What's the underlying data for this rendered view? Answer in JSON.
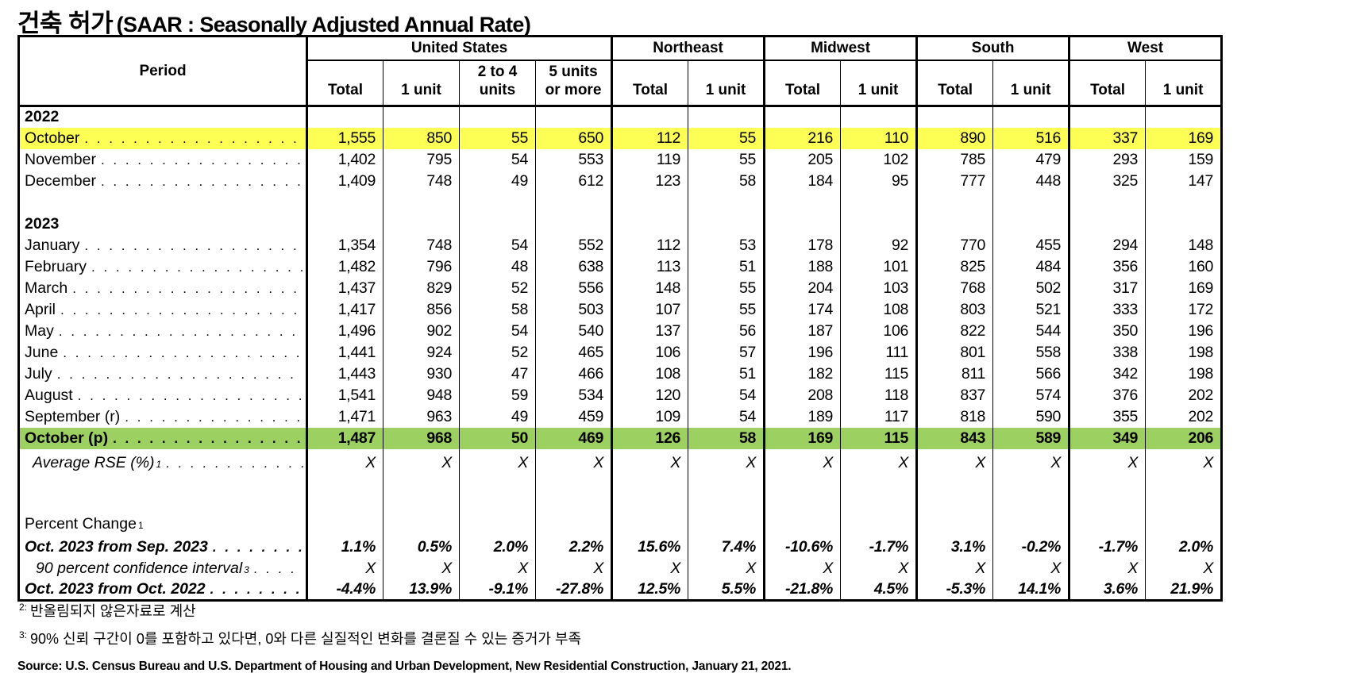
{
  "title": {
    "ko": "건축 허가",
    "en": "(SAAR : Seasonally Adjusted Annual Rate)"
  },
  "colors": {
    "highlight_yellow": "#FEFF54",
    "highlight_green": "#9CD162"
  },
  "table": {
    "header": {
      "period_label": "Period",
      "groups": [
        {
          "label": "United States",
          "cols": [
            "Total",
            "1 unit",
            "2 to 4\nunits",
            "5 units\nor more"
          ]
        },
        {
          "label": "Northeast",
          "cols": [
            "Total",
            "1 unit"
          ]
        },
        {
          "label": "Midwest",
          "cols": [
            "Total",
            "1 unit"
          ]
        },
        {
          "label": "South",
          "cols": [
            "Total",
            "1 unit"
          ]
        },
        {
          "label": "West",
          "cols": [
            "Total",
            "1 unit"
          ]
        }
      ]
    },
    "rows": [
      {
        "type": "section",
        "label": "2022"
      },
      {
        "type": "data",
        "label": "October",
        "highlight": "yellow",
        "values": [
          "1,555",
          "850",
          "55",
          "650",
          "112",
          "55",
          "216",
          "110",
          "890",
          "516",
          "337",
          "169"
        ]
      },
      {
        "type": "data",
        "label": "November",
        "values": [
          "1,402",
          "795",
          "54",
          "553",
          "119",
          "55",
          "205",
          "102",
          "785",
          "479",
          "293",
          "159"
        ]
      },
      {
        "type": "data",
        "label": "December",
        "values": [
          "1,409",
          "748",
          "49",
          "612",
          "123",
          "58",
          "184",
          "95",
          "777",
          "448",
          "325",
          "147"
        ]
      },
      {
        "type": "blank"
      },
      {
        "type": "section",
        "label": "2023"
      },
      {
        "type": "data",
        "label": "January",
        "values": [
          "1,354",
          "748",
          "54",
          "552",
          "112",
          "53",
          "178",
          "92",
          "770",
          "455",
          "294",
          "148"
        ]
      },
      {
        "type": "data",
        "label": "February",
        "values": [
          "1,482",
          "796",
          "48",
          "638",
          "113",
          "51",
          "188",
          "101",
          "825",
          "484",
          "356",
          "160"
        ]
      },
      {
        "type": "data",
        "label": "March",
        "values": [
          "1,437",
          "829",
          "52",
          "556",
          "148",
          "55",
          "204",
          "103",
          "768",
          "502",
          "317",
          "169"
        ]
      },
      {
        "type": "data",
        "label": "April",
        "values": [
          "1,417",
          "856",
          "58",
          "503",
          "107",
          "55",
          "174",
          "108",
          "803",
          "521",
          "333",
          "172"
        ]
      },
      {
        "type": "data",
        "label": "May",
        "values": [
          "1,496",
          "902",
          "54",
          "540",
          "137",
          "56",
          "187",
          "106",
          "822",
          "544",
          "350",
          "196"
        ]
      },
      {
        "type": "data",
        "label": "June",
        "values": [
          "1,441",
          "924",
          "52",
          "465",
          "106",
          "57",
          "196",
          "111",
          "801",
          "558",
          "338",
          "198"
        ]
      },
      {
        "type": "data",
        "label": "July",
        "values": [
          "1,443",
          "930",
          "47",
          "466",
          "108",
          "51",
          "182",
          "115",
          "811",
          "566",
          "342",
          "198"
        ]
      },
      {
        "type": "data",
        "label": "August",
        "values": [
          "1,541",
          "948",
          "59",
          "534",
          "120",
          "54",
          "208",
          "118",
          "837",
          "574",
          "376",
          "202"
        ]
      },
      {
        "type": "data",
        "label": "September (r)",
        "values": [
          "1,471",
          "963",
          "49",
          "459",
          "109",
          "54",
          "189",
          "117",
          "818",
          "590",
          "355",
          "202"
        ]
      },
      {
        "type": "data",
        "label": "October (p)",
        "highlight": "green",
        "values": [
          "1,487",
          "968",
          "50",
          "469",
          "126",
          "58",
          "169",
          "115",
          "843",
          "589",
          "349",
          "206"
        ]
      },
      {
        "type": "rse",
        "label": "Average RSE (%)",
        "sup": "1",
        "values": [
          "X",
          "X",
          "X",
          "X",
          "X",
          "X",
          "X",
          "X",
          "X",
          "X",
          "X",
          "X"
        ]
      },
      {
        "type": "blank",
        "tall": true
      },
      {
        "type": "pclabel",
        "label": "Percent Change",
        "sup": "1"
      },
      {
        "type": "pc",
        "label": "Oct. 2023 from Sep. 2023",
        "values": [
          "1.1%",
          "0.5%",
          "2.0%",
          "2.2%",
          "15.6%",
          "7.4%",
          "-10.6%",
          "-1.7%",
          "3.1%",
          "-0.2%",
          "-1.7%",
          "2.0%"
        ]
      },
      {
        "type": "ci",
        "label": "90 percent confidence interval",
        "sup": "3",
        "values": [
          "X",
          "X",
          "X",
          "X",
          "X",
          "X",
          "X",
          "X",
          "X",
          "X",
          "X",
          "X"
        ]
      },
      {
        "type": "pc",
        "label": "Oct. 2023 from Oct. 2022",
        "values": [
          "-4.4%",
          "13.9%",
          "-9.1%",
          "-27.8%",
          "12.5%",
          "5.5%",
          "-21.8%",
          "4.5%",
          "-5.3%",
          "14.1%",
          "3.6%",
          "21.9%"
        ]
      }
    ]
  },
  "footnotes": [
    {
      "sup": "2:",
      "text": "반올림되지 않은자료로 계산"
    },
    {
      "sup": "3:",
      "text": "90% 신뢰 구간이 0를 포함하고 있다면, 0와 다른 실질적인 변화를 결론질 수 있는 증거가 부족"
    }
  ],
  "source": "Source: U.S. Census Bureau and U.S. Department of Housing and Urban Development, New Residential Construction, January 21, 2021."
}
